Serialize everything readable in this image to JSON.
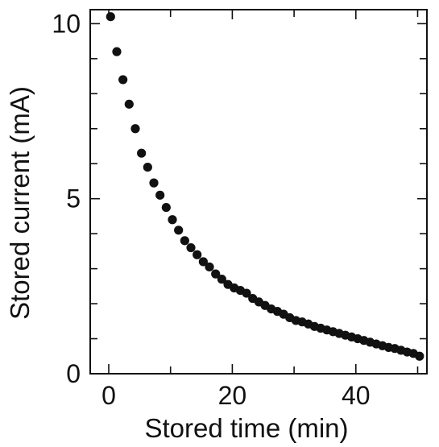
{
  "chart_data": {
    "type": "scatter",
    "title": "",
    "xlabel": "Stored time (min)",
    "ylabel": "Stored current (mA)",
    "xlim": [
      -3,
      51.5
    ],
    "ylim": [
      0,
      10.4
    ],
    "x_ticks": [
      0,
      20,
      40
    ],
    "y_ticks": [
      0,
      5,
      10
    ],
    "x_minor_ticks": [
      10,
      30,
      50
    ],
    "y_minor_ticks": [
      1,
      2,
      3,
      4,
      6,
      7,
      8,
      9
    ],
    "grid": false,
    "marker_color": "#111111",
    "series": [
      {
        "x": [
          0.3,
          1.3,
          2.3,
          3.3,
          4.3,
          5.3,
          6.3,
          7.3,
          8.3,
          9.3,
          10.3,
          11.3,
          12.3,
          13.3,
          14.3,
          15.3,
          16.3,
          17.3,
          18.3,
          19.3,
          20.3,
          21.3,
          22.3,
          23.3,
          24.3,
          25.3,
          26.3,
          27.3,
          28.3,
          29.3,
          30.3,
          31.3,
          32.3,
          33.3,
          34.3,
          35.3,
          36.3,
          37.3,
          38.3,
          39.3,
          40.3,
          41.3,
          42.3,
          43.3,
          44.3,
          45.3,
          46.3,
          47.3,
          48.3,
          49.3,
          50.3
        ],
        "y": [
          10.2,
          9.2,
          8.4,
          7.7,
          7.0,
          6.3,
          5.9,
          5.45,
          5.1,
          4.75,
          4.4,
          4.1,
          3.8,
          3.6,
          3.4,
          3.2,
          3.05,
          2.85,
          2.7,
          2.55,
          2.45,
          2.38,
          2.3,
          2.15,
          2.05,
          1.95,
          1.85,
          1.78,
          1.7,
          1.6,
          1.52,
          1.48,
          1.42,
          1.35,
          1.3,
          1.25,
          1.2,
          1.15,
          1.1,
          1.05,
          1.0,
          0.95,
          0.9,
          0.85,
          0.8,
          0.75,
          0.72,
          0.67,
          0.62,
          0.58,
          0.5
        ]
      }
    ]
  }
}
